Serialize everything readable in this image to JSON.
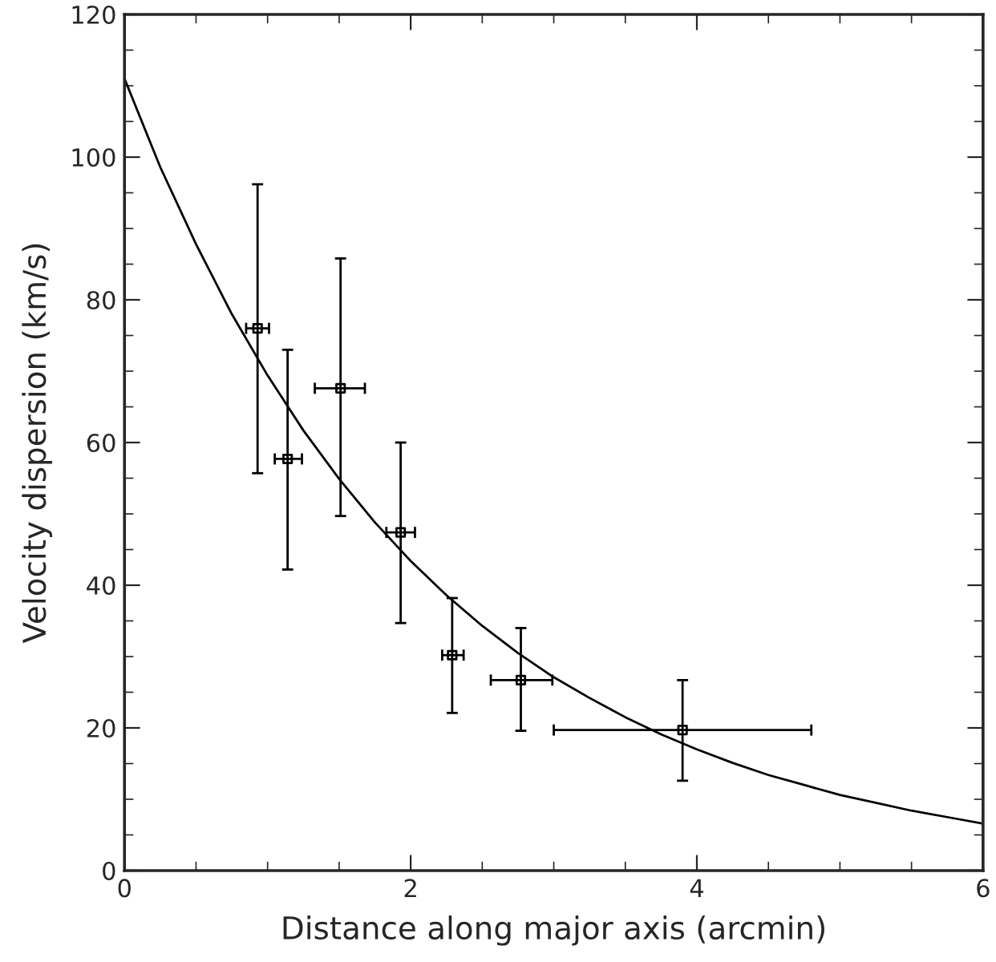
{
  "chart_data": {
    "type": "scatter",
    "xlabel": "Distance along major axis (arcmin)",
    "ylabel": "Velocity dispersion (km/s)",
    "xlim": [
      0,
      6
    ],
    "ylim": [
      0,
      120
    ],
    "xticks": [
      0,
      2,
      4,
      6
    ],
    "yticks": [
      0,
      20,
      40,
      60,
      80,
      100,
      120
    ],
    "grid": false,
    "legend": false,
    "series": [
      {
        "color": "#000000",
        "marker": "square",
        "x": [
          0.93,
          1.14,
          1.51,
          1.93,
          2.29,
          2.77,
          3.9
        ],
        "values": [
          76.0,
          57.7,
          67.6,
          47.4,
          30.2,
          26.7,
          19.7
        ],
        "errors": [
          [
            55.7,
            96.2
          ],
          [
            42.2,
            73.0
          ],
          [
            49.7,
            85.8
          ],
          [
            34.7,
            60.0
          ],
          [
            22.1,
            38.2
          ],
          [
            19.6,
            34.0
          ],
          [
            12.6,
            26.7
          ]
        ],
        "xerrors": [
          [
            0.85,
            1.01
          ],
          [
            1.05,
            1.24
          ],
          [
            1.33,
            1.68
          ],
          [
            1.83,
            2.03
          ],
          [
            2.22,
            2.37
          ],
          [
            2.56,
            2.99
          ],
          [
            3.0,
            4.8
          ]
        ]
      },
      {
        "type": "line",
        "color": "#000000",
        "line_style": "solid",
        "marker": "none",
        "x": [
          0,
          0.25,
          0.5,
          0.75,
          1,
          1.25,
          1.5,
          1.75,
          2,
          2.25,
          2.5,
          2.75,
          3,
          3.25,
          3.5,
          3.75,
          4,
          4.25,
          4.5,
          4.75,
          5,
          5.25,
          5.5,
          5.75,
          6
        ],
        "values": [
          111,
          98.6,
          87.8,
          78.0,
          69.4,
          61.7,
          54.9,
          48.8,
          43.4,
          38.6,
          34.3,
          30.5,
          27.1,
          24.2,
          21.5,
          19.1,
          17.0,
          15.1,
          13.4,
          12.0,
          10.6,
          9.5,
          8.4,
          7.5,
          6.6
        ]
      }
    ]
  }
}
